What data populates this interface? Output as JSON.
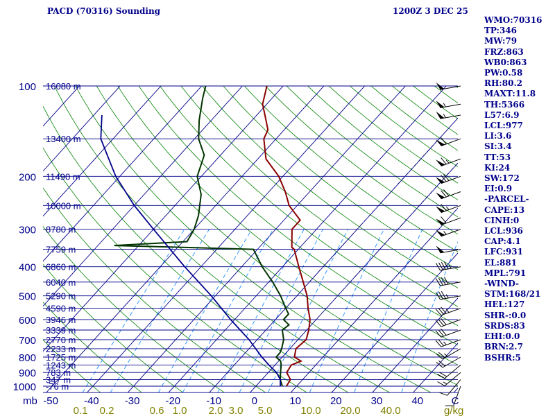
{
  "header": {
    "title": "PACD (70316) Sounding",
    "datetime": "1200Z  3 DEC 25"
  },
  "colors": {
    "isobar": "#00008b",
    "temp_line": "#8b0000",
    "dewpoint_line": "#003300",
    "parcel_line": "#00008b",
    "isotherm": "#00008b",
    "dry_adiabat": "#008000",
    "moist_adiabat": "#404040",
    "mixing_ratio": "#1e90ff",
    "label_text": "#00008b",
    "mixing_label_text": "#808000"
  },
  "chart_data": {
    "type": "line",
    "title": "PACD (70316) Sounding",
    "diagram": "skew-T log-P",
    "pressure_levels": [
      100,
      200,
      300,
      400,
      500,
      600,
      700,
      800,
      900,
      1000
    ],
    "pressure_unit": "mb",
    "height_levels": [
      {
        "p": 100,
        "label": "16080 m"
      },
      {
        "p": 150,
        "label": "13400 m"
      },
      {
        "p": 200,
        "label": "11490 m"
      },
      {
        "p": 250,
        "label": "10000 m"
      },
      {
        "p": 300,
        "label": "8780 m"
      },
      {
        "p": 350,
        "label": "7759 m"
      },
      {
        "p": 400,
        "label": "6860 m"
      },
      {
        "p": 450,
        "label": "6040 m"
      },
      {
        "p": 500,
        "label": "5290 m"
      },
      {
        "p": 550,
        "label": "4590 m"
      },
      {
        "p": 600,
        "label": "3946 m"
      },
      {
        "p": 650,
        "label": "3339 m"
      },
      {
        "p": 700,
        "label": "2770 m"
      },
      {
        "p": 750,
        "label": "2233 m"
      },
      {
        "p": 800,
        "label": "1725 m"
      },
      {
        "p": 850,
        "label": "1243 m"
      },
      {
        "p": 900,
        "label": "783 m"
      },
      {
        "p": 950,
        "label": "347 m"
      },
      {
        "p": 1000,
        "label": "-76 m"
      }
    ],
    "temperature_ticks": [
      -50,
      -40,
      -30,
      -20,
      -10,
      0,
      10,
      20,
      30,
      40
    ],
    "temperature_unit": "C",
    "mixing_ratio_ticks": [
      "0.1",
      "0.2",
      "0.6",
      "1.0",
      "2.0",
      "3.0",
      "5.0",
      "10.0",
      "20.0",
      "40.0"
    ],
    "mixing_ratio_unit": "g/kg",
    "temperature_profile": [
      [
        1000,
        7.5
      ],
      [
        950,
        7
      ],
      [
        900,
        4.5
      ],
      [
        850,
        4
      ],
      [
        825,
        5.5
      ],
      [
        800,
        3
      ],
      [
        750,
        1.5
      ],
      [
        700,
        2
      ],
      [
        650,
        0.5
      ],
      [
        600,
        -1.5
      ],
      [
        550,
        -4.5
      ],
      [
        500,
        -7.5
      ],
      [
        450,
        -11.5
      ],
      [
        400,
        -16
      ],
      [
        350,
        -21
      ],
      [
        345,
        -22
      ],
      [
        300,
        -26
      ],
      [
        280,
        -26
      ],
      [
        250,
        -32
      ],
      [
        225,
        -36
      ],
      [
        200,
        -41
      ],
      [
        175,
        -48
      ],
      [
        150,
        -53
      ],
      [
        140,
        -54
      ],
      [
        125,
        -58
      ],
      [
        115,
        -61
      ],
      [
        100,
        -64
      ]
    ],
    "dewpoint_profile": [
      [
        1000,
        6.5
      ],
      [
        950,
        4.5
      ],
      [
        900,
        3
      ],
      [
        850,
        1.5
      ],
      [
        825,
        0.5
      ],
      [
        800,
        -1.5
      ],
      [
        775,
        -1.5
      ],
      [
        750,
        -2
      ],
      [
        700,
        -3.5
      ],
      [
        650,
        -6
      ],
      [
        625,
        -5.5
      ],
      [
        600,
        -8
      ],
      [
        575,
        -8
      ],
      [
        550,
        -10
      ],
      [
        500,
        -14
      ],
      [
        450,
        -19
      ],
      [
        400,
        -25
      ],
      [
        350,
        -31
      ],
      [
        345,
        -48
      ],
      [
        340,
        -66
      ],
      [
        330,
        -49
      ],
      [
        300,
        -50
      ],
      [
        270,
        -52
      ],
      [
        230,
        -56
      ],
      [
        200,
        -61
      ],
      [
        170,
        -64
      ],
      [
        150,
        -69
      ],
      [
        130,
        -73
      ],
      [
        110,
        -77
      ],
      [
        100,
        -79
      ]
    ],
    "parcel_profile": [
      [
        1000,
        6
      ],
      [
        950,
        4.5
      ],
      [
        900,
        2
      ],
      [
        850,
        -1.5
      ],
      [
        800,
        -5
      ],
      [
        700,
        -12
      ],
      [
        600,
        -21
      ],
      [
        500,
        -31
      ],
      [
        400,
        -44
      ],
      [
        300,
        -60
      ],
      [
        250,
        -70
      ],
      [
        200,
        -81
      ],
      [
        150,
        -93
      ],
      [
        125,
        -98
      ]
    ],
    "wind_barbs": [
      {
        "p": 1000,
        "dir": 200,
        "spd": 10
      },
      {
        "p": 950,
        "dir": 220,
        "spd": 10
      },
      {
        "p": 900,
        "dir": 230,
        "spd": 15
      },
      {
        "p": 850,
        "dir": 230,
        "spd": 20
      },
      {
        "p": 800,
        "dir": 240,
        "spd": 20
      },
      {
        "p": 750,
        "dir": 240,
        "spd": 25
      },
      {
        "p": 700,
        "dir": 250,
        "spd": 25
      },
      {
        "p": 650,
        "dir": 250,
        "spd": 30
      },
      {
        "p": 600,
        "dir": 250,
        "spd": 30
      },
      {
        "p": 550,
        "dir": 250,
        "spd": 35
      },
      {
        "p": 500,
        "dir": 260,
        "spd": 35
      },
      {
        "p": 450,
        "dir": 260,
        "spd": 40
      },
      {
        "p": 400,
        "dir": 260,
        "spd": 45
      },
      {
        "p": 350,
        "dir": 260,
        "spd": 50
      },
      {
        "p": 300,
        "dir": 250,
        "spd": 55
      },
      {
        "p": 275,
        "dir": 250,
        "spd": 60
      },
      {
        "p": 250,
        "dir": 250,
        "spd": 65
      },
      {
        "p": 225,
        "dir": 250,
        "spd": 70
      },
      {
        "p": 200,
        "dir": 250,
        "spd": 70
      },
      {
        "p": 175,
        "dir": 250,
        "spd": 65
      },
      {
        "p": 150,
        "dir": 250,
        "spd": 60
      },
      {
        "p": 125,
        "dir": 260,
        "spd": 55
      },
      {
        "p": 115,
        "dir": 260,
        "spd": 55
      },
      {
        "p": 100,
        "dir": 260,
        "spd": 50
      }
    ],
    "xlim": [
      -50,
      50
    ],
    "ylim": [
      1050,
      100
    ],
    "grid": true
  },
  "sidebar": [
    "WMO:70316",
    "TP:346",
    "MW:79",
    "FRZ:863",
    "WB0:863",
    "PW:0.58",
    "RH:80.2",
    "MAXT:11.8",
    "TH:5366",
    "L57:6.9",
    "LCL:977",
    "LI:3.6",
    "SI:3.4",
    "TT:53",
    "KI:24",
    "SW:172",
    "EI:0.9",
    "-PARCEL-",
    "CAPE:13",
    "CINH:0",
    "LCL:936",
    "CAP:4.1",
    "LFC:931",
    "EL:881",
    "MPL:791",
    "-WIND-",
    "STM:168/21",
    "HEL:127",
    "SHR-:0.0",
    "SRDS:83",
    "EHI:0.0",
    "BRN:2.7",
    "BSHR:5"
  ]
}
